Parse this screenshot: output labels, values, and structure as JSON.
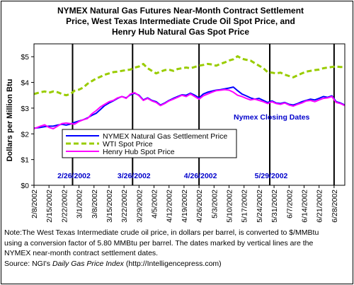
{
  "chart_data": {
    "type": "line",
    "title_lines": [
      "NYMEX Natural Gas Futures Near-Month Contract Settlement",
      "Price, West Texas Intermediate Crude Oil Spot Price, and",
      "Henry Hub Natural Gas Spot Price"
    ],
    "ylabel": "Dollars per Million Btu",
    "ylim": [
      0,
      5.5
    ],
    "ytick_labels": [
      "$0",
      "$1",
      "$2",
      "$3",
      "$4",
      "$5"
    ],
    "ytick_values": [
      0,
      1,
      2,
      3,
      4,
      5
    ],
    "xtick_labels": [
      "2/8/2002",
      "2/15/2002",
      "2/22/2002",
      "3/1/2002",
      "3/8/2002",
      "3/15/2002",
      "3/22/2002",
      "3/29/2002",
      "4/5/2002",
      "4/12/2002",
      "4/19/2002",
      "4/26/2002",
      "5/3/2002",
      "5/10/2002",
      "5/17/2002",
      "5/24/2002",
      "5/31/2002",
      "6/7/2002",
      "6/14/2002",
      "6/21/2002",
      "6/28/2002"
    ],
    "x_start_day": 0,
    "x_end_day": 145,
    "closing_dates": [
      {
        "label": "2/26/2002",
        "day": 18
      },
      {
        "label": "3/26/2002",
        "day": 46
      },
      {
        "label": "4/26/2002",
        "day": 77
      },
      {
        "label": "5/29/2002",
        "day": 110
      },
      {
        "label": "",
        "day": 140
      }
    ],
    "closing_dates_caption": "Nymex Closing Dates",
    "series": [
      {
        "name": "NYMEX Natural Gas Settlement Price",
        "color": "#0000ff",
        "style": "solid",
        "points": [
          [
            0,
            2.22
          ],
          [
            3,
            2.25
          ],
          [
            5,
            2.28
          ],
          [
            7,
            2.3
          ],
          [
            9,
            2.3
          ],
          [
            11,
            2.34
          ],
          [
            13,
            2.37
          ],
          [
            15,
            2.34
          ],
          [
            17,
            2.38
          ],
          [
            19,
            2.45
          ],
          [
            21,
            2.5
          ],
          [
            23,
            2.55
          ],
          [
            25,
            2.62
          ],
          [
            27,
            2.72
          ],
          [
            29,
            2.8
          ],
          [
            31,
            2.95
          ],
          [
            33,
            3.1
          ],
          [
            35,
            3.2
          ],
          [
            37,
            3.28
          ],
          [
            39,
            3.38
          ],
          [
            41,
            3.45
          ],
          [
            43,
            3.4
          ],
          [
            45,
            3.52
          ],
          [
            47,
            3.58
          ],
          [
            49,
            3.5
          ],
          [
            51,
            3.32
          ],
          [
            53,
            3.4
          ],
          [
            55,
            3.3
          ],
          [
            57,
            3.25
          ],
          [
            59,
            3.12
          ],
          [
            61,
            3.2
          ],
          [
            63,
            3.3
          ],
          [
            65,
            3.38
          ],
          [
            67,
            3.45
          ],
          [
            69,
            3.52
          ],
          [
            71,
            3.5
          ],
          [
            73,
            3.58
          ],
          [
            75,
            3.5
          ],
          [
            77,
            3.4
          ],
          [
            79,
            3.55
          ],
          [
            81,
            3.62
          ],
          [
            83,
            3.66
          ],
          [
            85,
            3.7
          ],
          [
            87,
            3.72
          ],
          [
            89,
            3.75
          ],
          [
            91,
            3.78
          ],
          [
            93,
            3.82
          ],
          [
            95,
            3.68
          ],
          [
            97,
            3.55
          ],
          [
            99,
            3.48
          ],
          [
            101,
            3.4
          ],
          [
            103,
            3.35
          ],
          [
            105,
            3.38
          ],
          [
            107,
            3.3
          ],
          [
            109,
            3.22
          ],
          [
            111,
            3.28
          ],
          [
            113,
            3.2
          ],
          [
            115,
            3.18
          ],
          [
            117,
            3.22
          ],
          [
            119,
            3.15
          ],
          [
            121,
            3.12
          ],
          [
            123,
            3.18
          ],
          [
            125,
            3.25
          ],
          [
            127,
            3.3
          ],
          [
            129,
            3.35
          ],
          [
            131,
            3.32
          ],
          [
            133,
            3.38
          ],
          [
            135,
            3.45
          ],
          [
            137,
            3.42
          ],
          [
            139,
            3.48
          ],
          [
            141,
            3.25
          ],
          [
            143,
            3.2
          ],
          [
            145,
            3.12
          ]
        ]
      },
      {
        "name": "WTI Spot Price",
        "color": "#99cc00",
        "style": "dashed",
        "points": [
          [
            0,
            3.55
          ],
          [
            3,
            3.62
          ],
          [
            5,
            3.65
          ],
          [
            7,
            3.6
          ],
          [
            9,
            3.65
          ],
          [
            11,
            3.62
          ],
          [
            13,
            3.55
          ],
          [
            15,
            3.5
          ],
          [
            17,
            3.55
          ],
          [
            19,
            3.68
          ],
          [
            21,
            3.72
          ],
          [
            23,
            3.8
          ],
          [
            25,
            3.95
          ],
          [
            27,
            4.05
          ],
          [
            29,
            4.15
          ],
          [
            31,
            4.22
          ],
          [
            33,
            4.3
          ],
          [
            35,
            4.35
          ],
          [
            37,
            4.4
          ],
          [
            39,
            4.42
          ],
          [
            41,
            4.45
          ],
          [
            43,
            4.48
          ],
          [
            45,
            4.5
          ],
          [
            47,
            4.58
          ],
          [
            49,
            4.62
          ],
          [
            51,
            4.72
          ],
          [
            53,
            4.55
          ],
          [
            55,
            4.45
          ],
          [
            57,
            4.35
          ],
          [
            59,
            4.42
          ],
          [
            61,
            4.48
          ],
          [
            63,
            4.5
          ],
          [
            65,
            4.45
          ],
          [
            67,
            4.52
          ],
          [
            69,
            4.55
          ],
          [
            71,
            4.58
          ],
          [
            73,
            4.55
          ],
          [
            75,
            4.6
          ],
          [
            77,
            4.65
          ],
          [
            79,
            4.68
          ],
          [
            81,
            4.72
          ],
          [
            83,
            4.7
          ],
          [
            85,
            4.65
          ],
          [
            87,
            4.72
          ],
          [
            89,
            4.78
          ],
          [
            91,
            4.85
          ],
          [
            93,
            4.9
          ],
          [
            95,
            5.02
          ],
          [
            97,
            4.92
          ],
          [
            99,
            4.88
          ],
          [
            101,
            4.85
          ],
          [
            103,
            4.75
          ],
          [
            105,
            4.65
          ],
          [
            107,
            4.55
          ],
          [
            109,
            4.4
          ],
          [
            111,
            4.38
          ],
          [
            113,
            4.35
          ],
          [
            115,
            4.38
          ],
          [
            117,
            4.3
          ],
          [
            119,
            4.25
          ],
          [
            121,
            4.2
          ],
          [
            123,
            4.28
          ],
          [
            125,
            4.35
          ],
          [
            127,
            4.42
          ],
          [
            129,
            4.45
          ],
          [
            131,
            4.48
          ],
          [
            133,
            4.5
          ],
          [
            135,
            4.55
          ],
          [
            137,
            4.58
          ],
          [
            139,
            4.6
          ],
          [
            141,
            4.62
          ],
          [
            143,
            4.6
          ],
          [
            145,
            4.6
          ]
        ]
      },
      {
        "name": "Henry Hub Spot Price",
        "color": "#ff00ff",
        "style": "solid",
        "points": [
          [
            0,
            2.2
          ],
          [
            3,
            2.3
          ],
          [
            5,
            2.35
          ],
          [
            7,
            2.25
          ],
          [
            9,
            2.2
          ],
          [
            11,
            2.3
          ],
          [
            13,
            2.4
          ],
          [
            15,
            2.42
          ],
          [
            17,
            2.4
          ],
          [
            19,
            2.38
          ],
          [
            21,
            2.48
          ],
          [
            23,
            2.55
          ],
          [
            25,
            2.6
          ],
          [
            27,
            2.78
          ],
          [
            29,
            2.9
          ],
          [
            31,
            3.05
          ],
          [
            33,
            3.15
          ],
          [
            35,
            3.25
          ],
          [
            37,
            3.3
          ],
          [
            39,
            3.4
          ],
          [
            41,
            3.45
          ],
          [
            43,
            3.38
          ],
          [
            45,
            3.55
          ],
          [
            47,
            3.6
          ],
          [
            49,
            3.48
          ],
          [
            51,
            3.3
          ],
          [
            53,
            3.38
          ],
          [
            55,
            3.28
          ],
          [
            57,
            3.22
          ],
          [
            59,
            3.1
          ],
          [
            61,
            3.18
          ],
          [
            63,
            3.28
          ],
          [
            65,
            3.35
          ],
          [
            67,
            3.42
          ],
          [
            69,
            3.5
          ],
          [
            71,
            3.45
          ],
          [
            73,
            3.55
          ],
          [
            75,
            3.45
          ],
          [
            77,
            3.35
          ],
          [
            79,
            3.48
          ],
          [
            81,
            3.55
          ],
          [
            83,
            3.62
          ],
          [
            85,
            3.68
          ],
          [
            87,
            3.7
          ],
          [
            89,
            3.72
          ],
          [
            91,
            3.7
          ],
          [
            93,
            3.62
          ],
          [
            95,
            3.5
          ],
          [
            97,
            3.45
          ],
          [
            99,
            3.38
          ],
          [
            101,
            3.32
          ],
          [
            103,
            3.35
          ],
          [
            105,
            3.3
          ],
          [
            107,
            3.25
          ],
          [
            109,
            3.18
          ],
          [
            111,
            3.25
          ],
          [
            113,
            3.18
          ],
          [
            115,
            3.15
          ],
          [
            117,
            3.2
          ],
          [
            119,
            3.12
          ],
          [
            121,
            3.08
          ],
          [
            123,
            3.15
          ],
          [
            125,
            3.2
          ],
          [
            127,
            3.28
          ],
          [
            129,
            3.3
          ],
          [
            131,
            3.25
          ],
          [
            133,
            3.32
          ],
          [
            135,
            3.38
          ],
          [
            137,
            3.4
          ],
          [
            139,
            3.45
          ],
          [
            141,
            3.22
          ],
          [
            143,
            3.18
          ],
          [
            145,
            3.1
          ]
        ]
      }
    ]
  },
  "note": {
    "line1": "Note:The West Texas Intermediate crude oil price, in dollars per barrel,  is converted to $/MMBtu",
    "line2": "using a conversion factor of 5.80 MMBtu per barrel.  The dates marked by vertical lines are the",
    "line3": "NYMEX near-month contract settlement dates.",
    "source_prefix": "Source:  NGI's ",
    "source_italic": "Daily Gas Price Index",
    "source_suffix": " (http://Intelligencepress.com)"
  }
}
